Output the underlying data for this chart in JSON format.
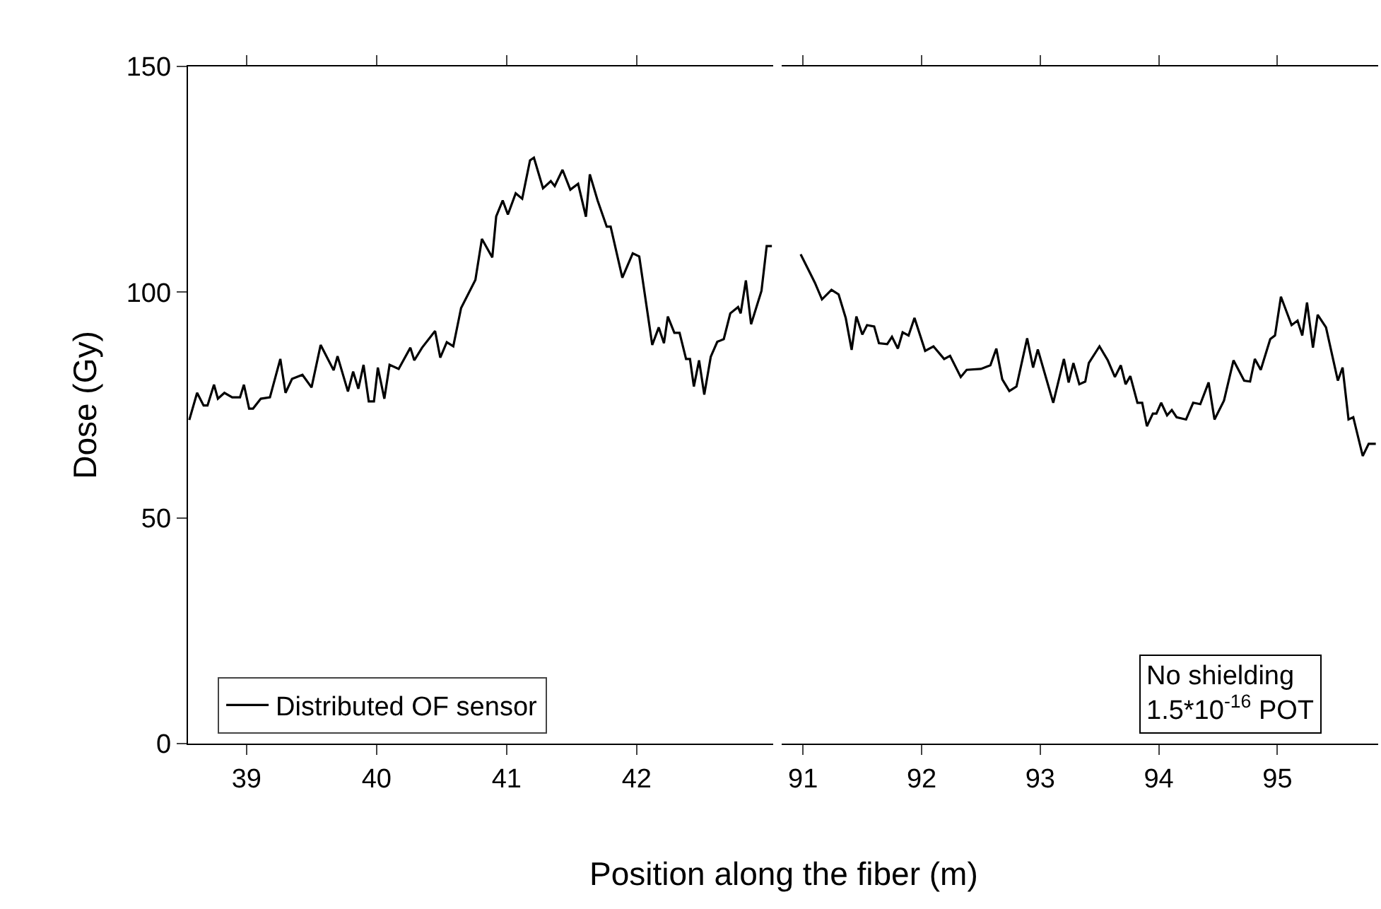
{
  "chart_data": [
    {
      "type": "line",
      "ylabel": "Dose (Gy)",
      "xlabel": "Position along the fiber (m)",
      "xlim": [
        38.55,
        43.05
      ],
      "xticks": [
        39,
        40,
        41,
        42
      ],
      "ylim": [
        0,
        150
      ],
      "yticks": [
        0,
        50,
        100,
        150
      ],
      "legend": "bottom left",
      "grid": false,
      "marker": "none",
      "line_style": "solid",
      "series": [
        {
          "name": "Distributed OF sensor",
          "color": "#000000",
          "x": [
            38.56,
            38.62,
            38.67,
            38.7,
            38.75,
            38.78,
            38.83,
            38.89,
            38.95,
            38.98,
            39.02,
            39.05,
            39.11,
            39.18,
            39.26,
            39.3,
            39.35,
            39.43,
            39.5,
            39.57,
            39.67,
            39.7,
            39.78,
            39.82,
            39.86,
            39.9,
            39.94,
            39.98,
            40.01,
            40.06,
            40.1,
            40.17,
            40.26,
            40.29,
            40.35,
            40.45,
            40.49,
            40.54,
            40.59,
            40.65,
            40.76,
            40.81,
            40.89,
            40.92,
            40.97,
            41.01,
            41.07,
            41.12,
            41.18,
            41.21,
            41.28,
            41.34,
            41.37,
            41.43,
            41.49,
            41.55,
            41.61,
            41.64,
            41.7,
            41.77,
            41.8,
            41.89,
            41.97,
            42.02,
            42.12,
            42.17,
            42.21,
            42.24,
            42.29,
            42.33,
            42.38,
            42.41,
            42.44,
            42.48,
            42.52,
            42.57,
            42.62,
            42.67,
            42.72,
            42.78,
            42.8,
            42.84,
            42.88,
            42.96,
            43.0,
            43.04
          ],
          "values": [
            71.7,
            77.7,
            74.9,
            74.9,
            79.5,
            76.4,
            77.7,
            76.7,
            76.7,
            79.5,
            74.2,
            74.2,
            76.4,
            76.7,
            85.2,
            77.7,
            80.8,
            81.7,
            78.9,
            88.3,
            82.7,
            85.8,
            78.0,
            82.4,
            78.6,
            83.9,
            75.8,
            75.8,
            83.3,
            76.4,
            83.9,
            83.0,
            87.7,
            84.9,
            87.7,
            91.4,
            85.5,
            88.9,
            88.0,
            96.5,
            102.7,
            111.8,
            107.7,
            116.8,
            120.3,
            117.2,
            121.9,
            120.7,
            129.2,
            129.8,
            123.0,
            124.6,
            123.5,
            127.1,
            122.7,
            124.0,
            116.7,
            126.1,
            120.3,
            114.5,
            114.5,
            103.2,
            108.6,
            107.9,
            88.3,
            92.2,
            88.7,
            94.6,
            91.0,
            91.0,
            85.2,
            85.2,
            79.1,
            84.9,
            77.3,
            85.7,
            89.0,
            89.6,
            95.3,
            96.7,
            95.3,
            102.6,
            92.9,
            100.3,
            110.2,
            110.2
          ]
        }
      ]
    },
    {
      "type": "line",
      "xlim": [
        90.82,
        95.85
      ],
      "xticks": [
        91,
        92,
        93,
        94,
        95
      ],
      "ylim": [
        0,
        150
      ],
      "yticks": [
        0,
        50,
        100,
        150
      ],
      "tick_labels": "x",
      "grid": false,
      "marker": "none",
      "line_style": "solid",
      "annotations": [
        "No shielding\n1.5*10$^{-16}$ POT"
      ],
      "series": [
        {
          "color": "#000000",
          "x": [
            90.98,
            91.06,
            91.1,
            91.16,
            91.24,
            91.3,
            91.36,
            91.41,
            91.45,
            91.5,
            91.54,
            91.6,
            91.64,
            91.71,
            91.75,
            91.8,
            91.84,
            91.89,
            91.94,
            92.03,
            92.1,
            92.19,
            92.24,
            92.33,
            92.38,
            92.5,
            92.58,
            92.63,
            92.68,
            92.74,
            92.8,
            92.89,
            92.94,
            92.98,
            93.11,
            93.2,
            93.24,
            93.28,
            93.33,
            93.38,
            93.41,
            93.5,
            93.57,
            93.63,
            93.68,
            93.72,
            93.76,
            93.82,
            93.86,
            93.9,
            93.95,
            93.98,
            94.02,
            94.07,
            94.11,
            94.15,
            94.23,
            94.29,
            94.35,
            94.42,
            94.47,
            94.55,
            94.63,
            94.72,
            94.77,
            94.81,
            94.86,
            94.94,
            94.98,
            95.03,
            95.12,
            95.17,
            95.21,
            95.25,
            95.3,
            95.34,
            95.41,
            95.51,
            95.55,
            95.6,
            95.64,
            95.72,
            95.77,
            95.83
          ],
          "values": [
            108.4,
            104.2,
            102.1,
            98.4,
            100.5,
            99.5,
            94.3,
            87.2,
            94.6,
            90.6,
            92.7,
            92.4,
            88.7,
            88.5,
            90.1,
            87.5,
            91.1,
            90.4,
            94.3,
            87.0,
            88.0,
            85.2,
            85.9,
            81.2,
            82.8,
            83.0,
            83.8,
            87.5,
            80.7,
            78.1,
            79.1,
            89.8,
            83.3,
            87.3,
            75.5,
            85.2,
            80.0,
            84.3,
            79.6,
            80.2,
            84.3,
            88.0,
            84.9,
            81.2,
            83.8,
            79.6,
            81.4,
            75.5,
            75.5,
            70.3,
            73.1,
            73.1,
            75.5,
            72.7,
            73.9,
            72.3,
            71.8,
            75.5,
            75.2,
            80.0,
            71.8,
            76.0,
            84.9,
            80.4,
            80.2,
            85.2,
            82.8,
            89.6,
            90.4,
            99.0,
            92.7,
            93.7,
            90.4,
            97.7,
            87.7,
            95.0,
            92.2,
            80.4,
            83.3,
            71.8,
            72.3,
            63.7,
            66.4,
            66.4
          ]
        }
      ]
    }
  ]
}
